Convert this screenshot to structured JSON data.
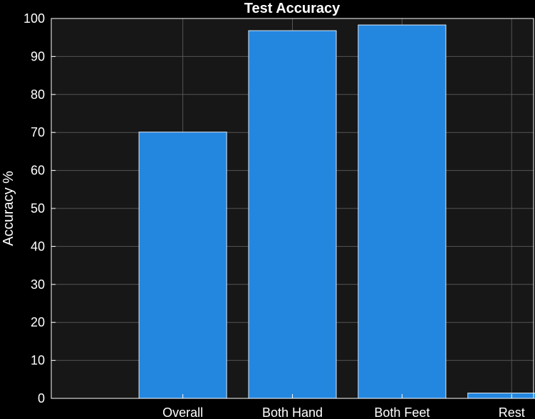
{
  "chart_data": {
    "type": "bar",
    "title": "Test Accuracy",
    "xlabel": "",
    "ylabel": "Accuracy %",
    "categories": [
      "Overall",
      "Both Hand",
      "Both Feet",
      "Rest"
    ],
    "values": [
      70.1,
      96.8,
      98.3,
      1.4
    ],
    "ylim": [
      0,
      100
    ],
    "yticks": [
      0,
      10,
      20,
      30,
      40,
      50,
      60,
      70,
      80,
      90,
      100
    ],
    "xlim": [
      -0.2,
      4.2
    ],
    "grid": true,
    "colors": {
      "background": "#000000",
      "plot_area": "#171717",
      "bar_fill": "#2387e0",
      "bar_edge": "#d9e6f2",
      "grid": "#555555",
      "axis": "#ffffff",
      "text": "#ffffff"
    }
  }
}
